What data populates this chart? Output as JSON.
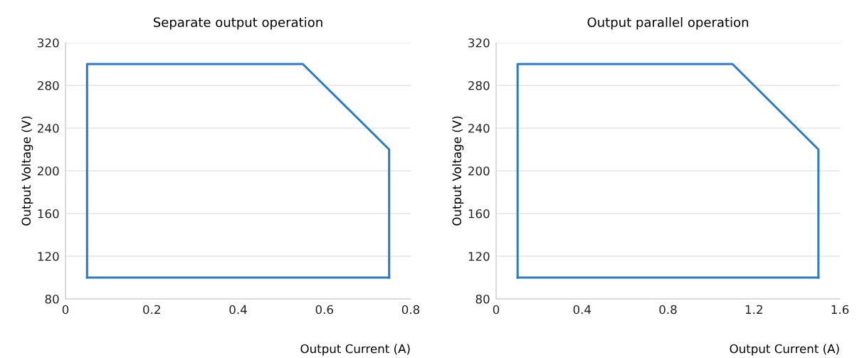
{
  "chart_data": [
    {
      "type": "line",
      "title": "Separate output operation",
      "xlabel": "Output Current (A)",
      "ylabel": "Output Voltage (V)",
      "series": [
        {
          "color": "#2a7bc8",
          "x": [
            0.05,
            0.05,
            0.55,
            0.75,
            0.75
          ],
          "values": [
            100,
            300,
            300,
            220,
            100
          ]
        },
        {
          "color": "#2a7bc8",
          "x": [
            0.05,
            0.75
          ],
          "values": [
            100,
            100
          ]
        }
      ],
      "xlim": [
        0,
        0.8
      ],
      "xticks": [
        0,
        0.2,
        0.4,
        0.6,
        0.8
      ],
      "ylim": [
        80,
        320
      ],
      "yticks": [
        80,
        120,
        160,
        200,
        240,
        280,
        320
      ],
      "grid": "y",
      "legend": false,
      "marker": "none",
      "line_style": "solid"
    },
    {
      "type": "line",
      "title": "Output parallel operation",
      "xlabel": "Output Current (A)",
      "ylabel": "Output Voltage (V)",
      "series": [
        {
          "color": "#2a7bc8",
          "x": [
            0.1,
            0.1,
            1.1,
            1.5,
            1.5
          ],
          "values": [
            100,
            300,
            300,
            220,
            100
          ]
        },
        {
          "color": "#2a7bc8",
          "x": [
            0.1,
            1.5
          ],
          "values": [
            100,
            100
          ]
        }
      ],
      "xlim": [
        0,
        1.6
      ],
      "xticks": [
        0,
        0.4,
        0.8,
        1.2,
        1.6
      ],
      "ylim": [
        80,
        320
      ],
      "yticks": [
        80,
        120,
        160,
        200,
        240,
        280,
        320
      ],
      "grid": "y",
      "legend": false,
      "marker": "none",
      "line_style": "solid"
    }
  ]
}
